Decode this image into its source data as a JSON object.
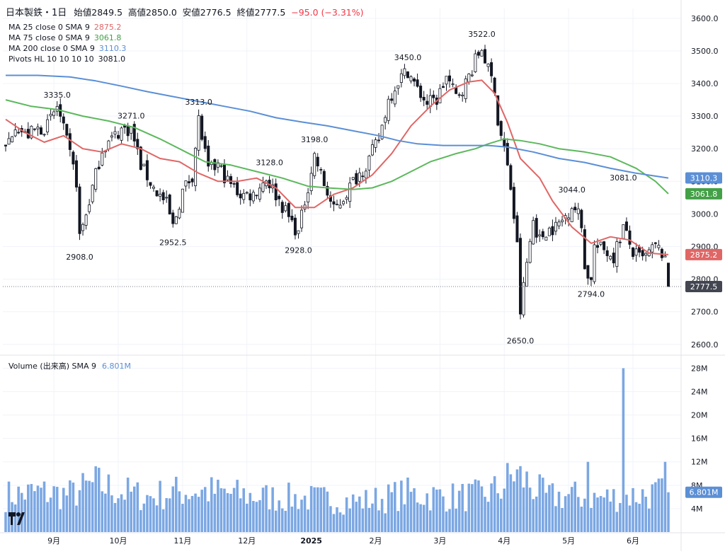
{
  "header": {
    "symbol": "日本製鉄・1日",
    "open_label": "始値",
    "open": "2849.5",
    "high_label": "高値",
    "high": "2850.0",
    "low_label": "安値",
    "low": "2776.5",
    "close_label": "終値",
    "close": "2777.5",
    "change": "−95.0 (−3.31%)"
  },
  "indicators": [
    {
      "label": "MA 25 close 0 SMA 9",
      "value": "2875.2",
      "color": "#e06666"
    },
    {
      "label": "MA 75 close 0 SMA 9",
      "value": "3061.8",
      "color": "#5cb85c"
    },
    {
      "label": "MA 200 close 0 SMA 9",
      "value": "3110.3",
      "color": "#5b8fd6"
    },
    {
      "label": "Pivots HL 10 10 10 10",
      "value": "3081.0",
      "color": "#131722"
    }
  ],
  "volume_legend": {
    "label": "Volume (出来高)  SMA 9",
    "value": "6.801M"
  },
  "colors": {
    "up": "#ffffff",
    "down": "#131722",
    "volume": "#7ba7e3",
    "grid": "#f0f3fa",
    "last_price": "#434651"
  },
  "chart_data": {
    "type": "candlestick",
    "price_axis": {
      "ticks": [
        2600,
        2700,
        2800,
        2900,
        3000,
        3100,
        3200,
        3300,
        3400,
        3500,
        3600
      ],
      "tick_labels": [
        "2600.0",
        "2700.0",
        "2800.0",
        "2900.0",
        "3000.0",
        "3100.0",
        "3200.0",
        "3300.0",
        "3400.0",
        "3500.0",
        "3600.0"
      ],
      "range": [
        2580,
        3630
      ]
    },
    "volume_axis": {
      "ticks": [
        4,
        8,
        12,
        16,
        20,
        24,
        28
      ],
      "tick_labels": [
        "4M",
        "8M",
        "12M",
        "16M",
        "20M",
        "24M",
        "28M"
      ],
      "range": [
        0,
        29.5
      ]
    },
    "time_axis": {
      "labels": [
        "9月",
        "10月",
        "11月",
        "12月",
        "2025",
        "2月",
        "3月",
        "4月",
        "5月",
        "6月"
      ],
      "bar_index": [
        15,
        35,
        55,
        75,
        95,
        115,
        135,
        155,
        175,
        195
      ]
    },
    "price_badges": [
      {
        "value": 3110.3,
        "label": "3110.3",
        "color": "#5b8fd6"
      },
      {
        "value": 3061.8,
        "label": "3061.8",
        "color": "#43a047"
      },
      {
        "value": 2875.2,
        "label": "2875.2",
        "color": "#e06666"
      },
      {
        "value": 2777.5,
        "label": "2777.5",
        "color": "#434651"
      }
    ],
    "volume_badge": {
      "value": 6.801,
      "label": "6.801M",
      "color": "#5b8fd6"
    },
    "pivots": [
      {
        "index": 16,
        "price": 3335.0,
        "label": "3335.0",
        "kind": "high"
      },
      {
        "index": 23,
        "price": 2908.0,
        "label": "2908.0",
        "kind": "low"
      },
      {
        "index": 39,
        "price": 3271.0,
        "label": "3271.0",
        "kind": "high"
      },
      {
        "index": 52,
        "price": 2952.5,
        "label": "2952.5",
        "kind": "low"
      },
      {
        "index": 60,
        "price": 3313.0,
        "label": "3313.0",
        "kind": "high"
      },
      {
        "index": 82,
        "price": 3128.0,
        "label": "3128.0",
        "kind": "high"
      },
      {
        "index": 91,
        "price": 2928.0,
        "label": "2928.0",
        "kind": "low"
      },
      {
        "index": 96,
        "price": 3198.0,
        "label": "3198.0",
        "kind": "high"
      },
      {
        "index": 125,
        "price": 3450.0,
        "label": "3450.0",
        "kind": "high"
      },
      {
        "index": 148,
        "price": 3522.0,
        "label": "3522.0",
        "kind": "high"
      },
      {
        "index": 160,
        "price": 2650.0,
        "label": "2650.0",
        "kind": "low"
      },
      {
        "index": 176,
        "price": 3044.0,
        "label": "3044.0",
        "kind": "high"
      },
      {
        "index": 182,
        "price": 2794.0,
        "label": "2794.0",
        "kind": "low"
      },
      {
        "index": 192,
        "price": 3081.0,
        "label": "3081.0",
        "kind": "high"
      }
    ],
    "ma_series": [
      {
        "name": "MA 25",
        "color": "#e06666",
        "points": [
          [
            0,
            3290
          ],
          [
            6,
            3250
          ],
          [
            12,
            3220
          ],
          [
            18,
            3240
          ],
          [
            24,
            3200
          ],
          [
            30,
            3190
          ],
          [
            36,
            3215
          ],
          [
            42,
            3200
          ],
          [
            48,
            3170
          ],
          [
            54,
            3160
          ],
          [
            60,
            3125
          ],
          [
            66,
            3100
          ],
          [
            72,
            3100
          ],
          [
            78,
            3110
          ],
          [
            84,
            3080
          ],
          [
            90,
            3020
          ],
          [
            96,
            3020
          ],
          [
            102,
            3060
          ],
          [
            108,
            3080
          ],
          [
            114,
            3120
          ],
          [
            120,
            3185
          ],
          [
            126,
            3270
          ],
          [
            132,
            3330
          ],
          [
            138,
            3380
          ],
          [
            144,
            3405
          ],
          [
            148,
            3410
          ],
          [
            152,
            3370
          ],
          [
            156,
            3280
          ],
          [
            160,
            3170
          ],
          [
            166,
            3110
          ],
          [
            170,
            3040
          ],
          [
            176,
            2960
          ],
          [
            182,
            2910
          ],
          [
            188,
            2930
          ],
          [
            194,
            2920
          ],
          [
            200,
            2880
          ],
          [
            206,
            2875.2
          ]
        ]
      },
      {
        "name": "MA 75",
        "color": "#5cb85c",
        "points": [
          [
            0,
            3350
          ],
          [
            8,
            3330
          ],
          [
            16,
            3320
          ],
          [
            24,
            3300
          ],
          [
            32,
            3285
          ],
          [
            40,
            3265
          ],
          [
            48,
            3230
          ],
          [
            56,
            3190
          ],
          [
            62,
            3160
          ],
          [
            70,
            3150
          ],
          [
            78,
            3130
          ],
          [
            86,
            3110
          ],
          [
            94,
            3085
          ],
          [
            100,
            3080
          ],
          [
            108,
            3075
          ],
          [
            114,
            3080
          ],
          [
            120,
            3100
          ],
          [
            126,
            3130
          ],
          [
            132,
            3160
          ],
          [
            140,
            3185
          ],
          [
            146,
            3200
          ],
          [
            150,
            3215
          ],
          [
            155,
            3230
          ],
          [
            160,
            3225
          ],
          [
            166,
            3215
          ],
          [
            172,
            3200
          ],
          [
            180,
            3190
          ],
          [
            188,
            3175
          ],
          [
            196,
            3140
          ],
          [
            202,
            3100
          ],
          [
            206,
            3061.8
          ]
        ]
      },
      {
        "name": "MA 200",
        "color": "#5b8fd6",
        "points": [
          [
            0,
            3425
          ],
          [
            10,
            3425
          ],
          [
            20,
            3420
          ],
          [
            28,
            3408
          ],
          [
            36,
            3392
          ],
          [
            44,
            3375
          ],
          [
            52,
            3360
          ],
          [
            60,
            3345
          ],
          [
            68,
            3330
          ],
          [
            76,
            3315
          ],
          [
            84,
            3295
          ],
          [
            92,
            3282
          ],
          [
            100,
            3270
          ],
          [
            108,
            3255
          ],
          [
            116,
            3240
          ],
          [
            122,
            3225
          ],
          [
            128,
            3215
          ],
          [
            136,
            3210
          ],
          [
            144,
            3210
          ],
          [
            150,
            3210
          ],
          [
            156,
            3205
          ],
          [
            164,
            3190
          ],
          [
            172,
            3170
          ],
          [
            180,
            3158
          ],
          [
            188,
            3140
          ],
          [
            196,
            3125
          ],
          [
            206,
            3110.3
          ]
        ]
      }
    ],
    "anchors": [
      [
        0,
        3200
      ],
      [
        3,
        3280
      ],
      [
        6,
        3240
      ],
      [
        10,
        3260
      ],
      [
        13,
        3270
      ],
      [
        16,
        3330
      ],
      [
        19,
        3220
      ],
      [
        22,
        3100
      ],
      [
        23,
        2930
      ],
      [
        25,
        3000
      ],
      [
        27,
        3080
      ],
      [
        30,
        3200
      ],
      [
        33,
        3230
      ],
      [
        36,
        3260
      ],
      [
        39,
        3260
      ],
      [
        42,
        3150
      ],
      [
        46,
        3080
      ],
      [
        50,
        3030
      ],
      [
        52,
        2960
      ],
      [
        55,
        3070
      ],
      [
        58,
        3120
      ],
      [
        60,
        3290
      ],
      [
        63,
        3130
      ],
      [
        66,
        3150
      ],
      [
        69,
        3100
      ],
      [
        73,
        3060
      ],
      [
        77,
        3060
      ],
      [
        81,
        3110
      ],
      [
        84,
        3060
      ],
      [
        88,
        2990
      ],
      [
        91,
        2940
      ],
      [
        93,
        3040
      ],
      [
        96,
        3180
      ],
      [
        99,
        3090
      ],
      [
        102,
        3010
      ],
      [
        105,
        3050
      ],
      [
        108,
        3100
      ],
      [
        112,
        3150
      ],
      [
        116,
        3230
      ],
      [
        119,
        3350
      ],
      [
        122,
        3410
      ],
      [
        125,
        3440
      ],
      [
        128,
        3380
      ],
      [
        131,
        3340
      ],
      [
        134,
        3350
      ],
      [
        137,
        3420
      ],
      [
        140,
        3360
      ],
      [
        143,
        3400
      ],
      [
        146,
        3470
      ],
      [
        148,
        3510
      ],
      [
        150,
        3440
      ],
      [
        152,
        3390
      ],
      [
        153,
        3280
      ],
      [
        155,
        3200
      ],
      [
        157,
        3080
      ],
      [
        159,
        2900
      ],
      [
        160,
        2700
      ],
      [
        162,
        2850
      ],
      [
        164,
        2980
      ],
      [
        166,
        2920
      ],
      [
        168,
        2950
      ],
      [
        171,
        2960
      ],
      [
        173,
        2980
      ],
      [
        175,
        3010
      ],
      [
        176,
        3030
      ],
      [
        178,
        3000
      ],
      [
        179,
        2960
      ],
      [
        180,
        2850
      ],
      [
        181,
        2800
      ],
      [
        182,
        2810
      ],
      [
        183,
        2900
      ],
      [
        186,
        2890
      ],
      [
        189,
        2870
      ],
      [
        192,
        2960
      ],
      [
        195,
        2880
      ],
      [
        198,
        2860
      ],
      [
        202,
        2900
      ],
      [
        204,
        2880
      ],
      [
        205,
        2849.5
      ],
      [
        206,
        2777.5
      ]
    ],
    "volume_profile": [
      [
        0,
        6.2
      ],
      [
        10,
        6.8
      ],
      [
        20,
        6.4
      ],
      [
        28,
        8.2
      ],
      [
        36,
        6.9
      ],
      [
        44,
        6.0
      ],
      [
        52,
        6.8
      ],
      [
        60,
        7.1
      ],
      [
        70,
        6.5
      ],
      [
        80,
        6.0
      ],
      [
        90,
        5.8
      ],
      [
        100,
        5.6
      ],
      [
        110,
        5.2
      ],
      [
        118,
        5.8
      ],
      [
        124,
        6.6
      ],
      [
        132,
        6.2
      ],
      [
        140,
        6.0
      ],
      [
        148,
        6.3
      ],
      [
        154,
        7.5
      ],
      [
        158,
        10.0
      ],
      [
        162,
        8.6
      ],
      [
        168,
        6.0
      ],
      [
        176,
        6.2
      ],
      [
        184,
        5.8
      ],
      [
        192,
        6.1
      ],
      [
        200,
        6.5
      ],
      [
        206,
        6.801
      ]
    ],
    "volume_spikes": [
      {
        "index": 181,
        "value": 12.0
      },
      {
        "index": 192,
        "value": 28.0
      },
      {
        "index": 205,
        "value": 12.0
      },
      {
        "index": 206,
        "value": 6.801
      }
    ],
    "num_bars": 207
  }
}
